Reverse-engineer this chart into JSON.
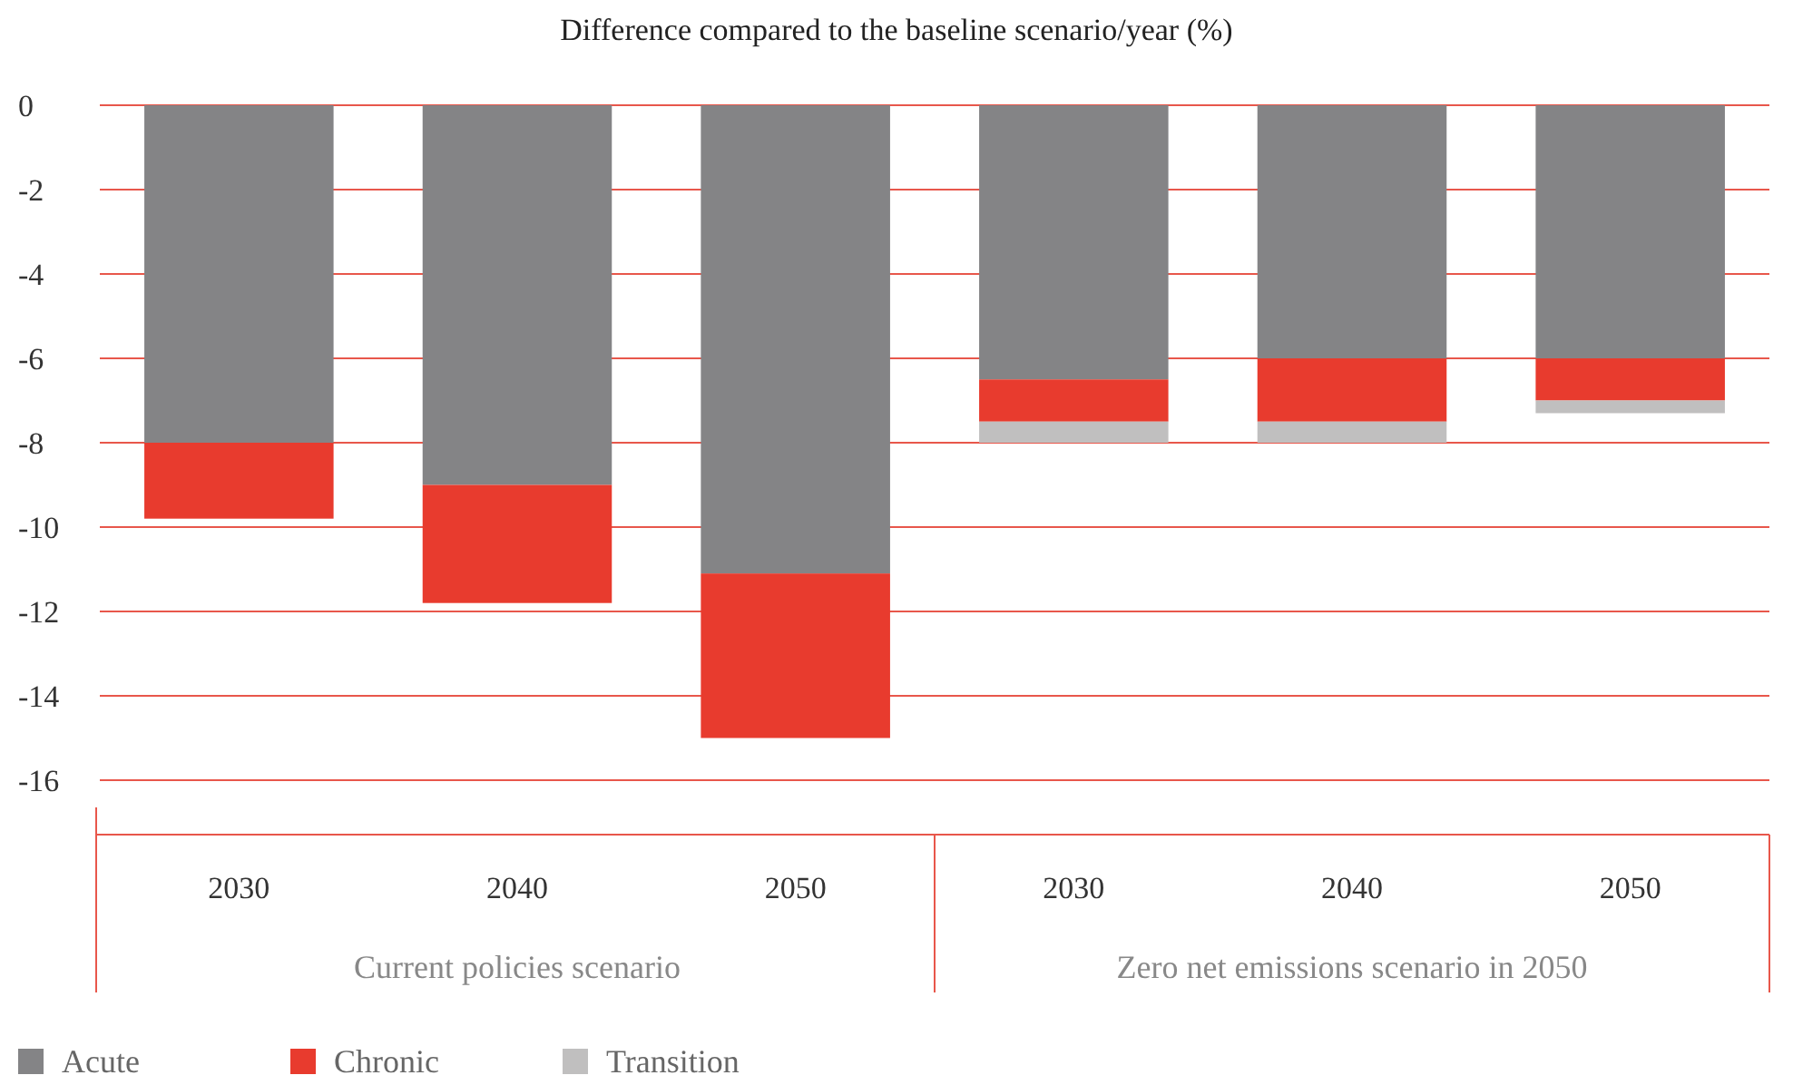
{
  "chart_data": {
    "type": "bar",
    "title": "Difference compared to the baseline scenario/year (%)",
    "stacked": true,
    "categories": [
      "2030",
      "2040",
      "2050",
      "2030",
      "2040",
      "2050"
    ],
    "series": [
      {
        "name": "Acute",
        "color": "#848486",
        "values": [
          -8.0,
          -9.0,
          -11.1,
          -6.5,
          -6.0,
          -6.0
        ]
      },
      {
        "name": "Chronic",
        "color": "#e83b2e",
        "values": [
          -1.8,
          -2.8,
          -3.9,
          -1.0,
          -1.5,
          -1.0
        ]
      },
      {
        "name": "Transition",
        "color": "#c0bfbf",
        "values": [
          0,
          0,
          0,
          -0.5,
          -0.5,
          -0.3
        ]
      }
    ],
    "ylim": [
      -16,
      0
    ],
    "yticks": [
      0,
      -2,
      -4,
      -6,
      -8,
      -10,
      -12,
      -14,
      -16
    ],
    "grid": "y",
    "legend": "bottom left",
    "annotations": [
      "Current policies scenario",
      "Zero net emissions scenario in 2050"
    ]
  }
}
